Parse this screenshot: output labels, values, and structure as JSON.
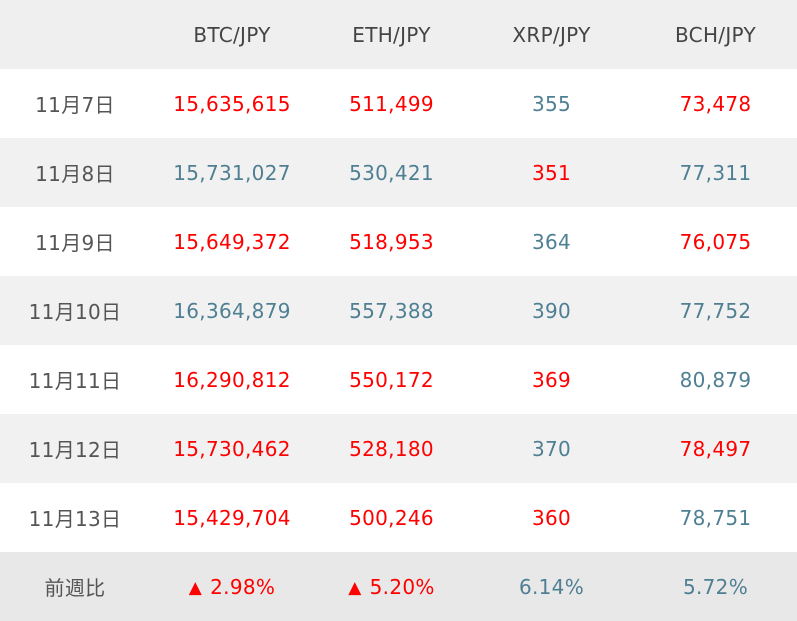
{
  "table": {
    "headers": [
      "",
      "BTC/JPY",
      "ETH/JPY",
      "XRP/JPY",
      "BCH/JPY"
    ],
    "rows": [
      {
        "date": "11月7日",
        "cells": [
          {
            "value": "15,635,615",
            "trend": "up"
          },
          {
            "value": "511,499",
            "trend": "up"
          },
          {
            "value": "355",
            "trend": "down"
          },
          {
            "value": "73,478",
            "trend": "up"
          }
        ]
      },
      {
        "date": "11月8日",
        "cells": [
          {
            "value": "15,731,027",
            "trend": "down"
          },
          {
            "value": "530,421",
            "trend": "down"
          },
          {
            "value": "351",
            "trend": "up"
          },
          {
            "value": "77,311",
            "trend": "down"
          }
        ]
      },
      {
        "date": "11月9日",
        "cells": [
          {
            "value": "15,649,372",
            "trend": "up"
          },
          {
            "value": "518,953",
            "trend": "up"
          },
          {
            "value": "364",
            "trend": "down"
          },
          {
            "value": "76,075",
            "trend": "up"
          }
        ]
      },
      {
        "date": "11月10日",
        "cells": [
          {
            "value": "16,364,879",
            "trend": "down"
          },
          {
            "value": "557,388",
            "trend": "down"
          },
          {
            "value": "390",
            "trend": "down"
          },
          {
            "value": "77,752",
            "trend": "down"
          }
        ]
      },
      {
        "date": "11月11日",
        "cells": [
          {
            "value": "16,290,812",
            "trend": "up"
          },
          {
            "value": "550,172",
            "trend": "up"
          },
          {
            "value": "369",
            "trend": "up"
          },
          {
            "value": "80,879",
            "trend": "down"
          }
        ]
      },
      {
        "date": "11月12日",
        "cells": [
          {
            "value": "15,730,462",
            "trend": "up"
          },
          {
            "value": "528,180",
            "trend": "up"
          },
          {
            "value": "370",
            "trend": "down"
          },
          {
            "value": "78,497",
            "trend": "up"
          }
        ]
      },
      {
        "date": "11月13日",
        "cells": [
          {
            "value": "15,429,704",
            "trend": "up"
          },
          {
            "value": "500,246",
            "trend": "up"
          },
          {
            "value": "360",
            "trend": "up"
          },
          {
            "value": "78,751",
            "trend": "down"
          }
        ]
      }
    ],
    "summary": {
      "label": "前週比",
      "cells": [
        {
          "arrow": "▲",
          "value": "2.98%",
          "trend": "up"
        },
        {
          "arrow": "▲",
          "value": "5.20%",
          "trend": "up"
        },
        {
          "arrow": "",
          "value": "6.14%",
          "trend": "down"
        },
        {
          "arrow": "",
          "value": "5.72%",
          "trend": "down"
        }
      ]
    }
  },
  "colors": {
    "up": "#ff0000",
    "down": "#4f7f92",
    "header_bg": "#efefef",
    "row_alt_bg": "#f1f1f1",
    "summary_bg": "#e8e8e8"
  }
}
